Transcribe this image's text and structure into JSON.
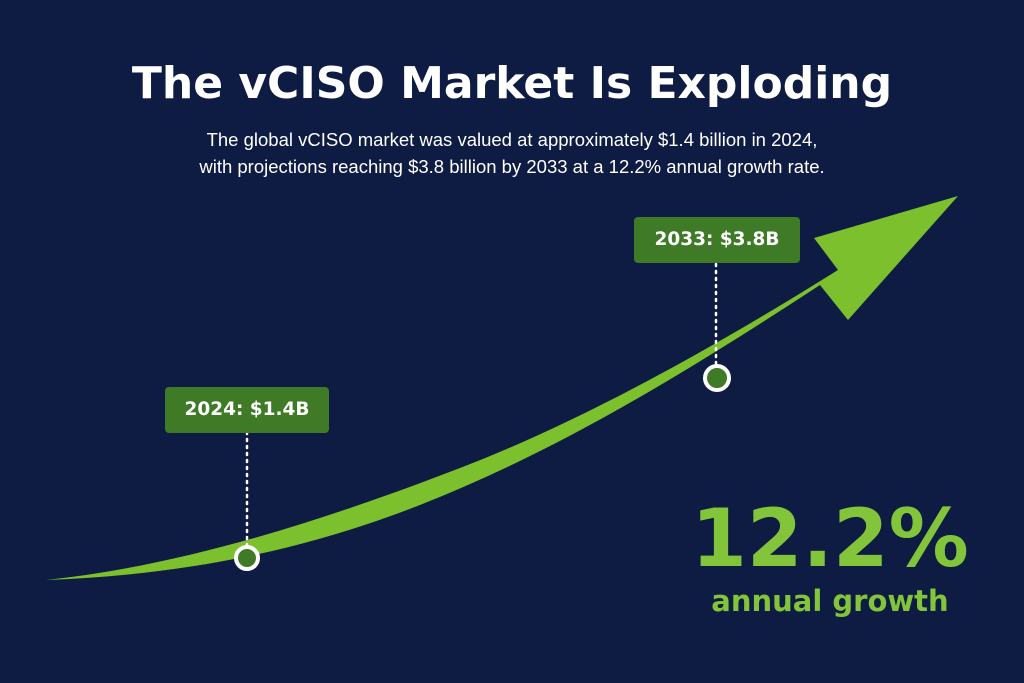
{
  "header": {
    "title": "The vCISO Market Is Exploding",
    "subtitle_line1": "The global vCISO market was valued at approximately $1.4 billion in 2024,",
    "subtitle_line2": "with projections reaching $3.8 billion by 2033 at a 12.2% annual growth rate."
  },
  "colors": {
    "background": "#0e1c43",
    "arrow": "#7cc02e",
    "label_box": "#3f7a27",
    "marker_fill": "#3f7a27",
    "marker_stroke": "#ffffff",
    "growth_text": "#82c43a"
  },
  "chart_data": {
    "type": "line",
    "title": "The vCISO Market Is Exploding",
    "x": [
      2024,
      2033
    ],
    "series": [
      {
        "values": [
          1.4,
          3.8
        ]
      }
    ],
    "points": [
      {
        "year": 2024,
        "value": 1.4,
        "label": "2024: $1.4B"
      },
      {
        "year": 2033,
        "value": 3.8,
        "label": "2033: $3.8B"
      }
    ],
    "annotation": {
      "value": "12.2%",
      "label": "annual growth"
    },
    "grid": false,
    "legend": "none"
  }
}
